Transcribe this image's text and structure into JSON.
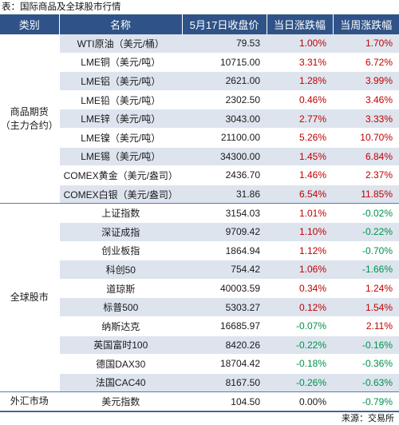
{
  "caption": "表：国际商品及全球股市行情",
  "headers": [
    "类别",
    "名称",
    "5月17日收盘价",
    "当日涨跌幅",
    "当周涨跌幅"
  ],
  "groups": [
    {
      "category_lines": [
        "商品期货",
        "（主力合约）"
      ],
      "rows": [
        {
          "name": "WTI原油（美元/桶）",
          "price": "79.53",
          "day": "1.00%",
          "week": "1.70%"
        },
        {
          "name": "LME铜（美元/吨）",
          "price": "10715.00",
          "day": "3.31%",
          "week": "6.72%"
        },
        {
          "name": "LME铝（美元/吨）",
          "price": "2621.00",
          "day": "1.28%",
          "week": "3.99%"
        },
        {
          "name": "LME铅（美元/吨）",
          "price": "2302.50",
          "day": "0.46%",
          "week": "3.46%"
        },
        {
          "name": "LME锌（美元/吨）",
          "price": "3043.00",
          "day": "2.77%",
          "week": "3.33%"
        },
        {
          "name": "LME镍（美元/吨）",
          "price": "21100.00",
          "day": "5.26%",
          "week": "10.70%"
        },
        {
          "name": "LME锡（美元/吨）",
          "price": "34300.00",
          "day": "1.45%",
          "week": "6.84%"
        },
        {
          "name": "COMEX黄金（美元/盎司）",
          "price": "2436.70",
          "day": "1.46%",
          "week": "2.37%"
        },
        {
          "name": "COMEX白银（美元/盎司）",
          "price": "31.86",
          "day": "6.54%",
          "week": "11.85%"
        }
      ]
    },
    {
      "category_lines": [
        "全球股市"
      ],
      "rows": [
        {
          "name": "上证指数",
          "price": "3154.03",
          "day": "1.01%",
          "week": "-0.02%"
        },
        {
          "name": "深证成指",
          "price": "9709.42",
          "day": "1.10%",
          "week": "-0.22%"
        },
        {
          "name": "创业板指",
          "price": "1864.94",
          "day": "1.12%",
          "week": "-0.70%"
        },
        {
          "name": "科创50",
          "price": "754.42",
          "day": "1.06%",
          "week": "-1.66%"
        },
        {
          "name": "道琼斯",
          "price": "40003.59",
          "day": "0.34%",
          "week": "1.24%"
        },
        {
          "name": "标普500",
          "price": "5303.27",
          "day": "0.12%",
          "week": "1.54%"
        },
        {
          "name": "纳斯达克",
          "price": "16685.97",
          "day": "-0.07%",
          "week": "2.11%"
        },
        {
          "name": "英国富时100",
          "price": "8420.26",
          "day": "-0.22%",
          "week": "-0.16%"
        },
        {
          "name": "德国DAX30",
          "price": "18704.42",
          "day": "-0.18%",
          "week": "-0.36%"
        },
        {
          "name": "法国CAC40",
          "price": "8167.50",
          "day": "-0.26%",
          "week": "-0.63%"
        }
      ]
    },
    {
      "category_lines": [
        "外汇市场"
      ],
      "rows": [
        {
          "name": "美元指数",
          "price": "104.50",
          "day": "0.00%",
          "week": "-0.79%"
        }
      ]
    }
  ],
  "colors": {
    "header_bg": "#2f5388",
    "stripe": "#dde4ee",
    "up": "#c00000",
    "down": "#00904a"
  },
  "source": "来源：交易所"
}
